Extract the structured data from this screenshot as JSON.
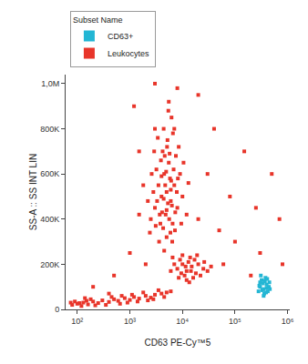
{
  "chart_data": {
    "type": "scatter",
    "x_label": "CD63 PE-Cy™5",
    "y_label": "SS-A :: SS INT LIN",
    "legend_title": "Subset Name",
    "legend": "top",
    "log": "x",
    "grid": false,
    "xlim": [
      60,
      1100000
    ],
    "xticks": [
      {
        "value": 100,
        "label": "10²"
      },
      {
        "value": 1000,
        "label": "10³"
      },
      {
        "value": 10000,
        "label": "10⁴"
      },
      {
        "value": 100000,
        "label": "10⁵"
      },
      {
        "value": 1000000,
        "label": "10⁶"
      }
    ],
    "ylim": [
      0,
      1040000
    ],
    "yticks": [
      0,
      {
        "value": 200000,
        "label": "200K"
      },
      {
        "value": 400000,
        "label": "400K"
      },
      {
        "value": 600000,
        "label": "600K"
      },
      {
        "value": 800000,
        "label": "800K"
      },
      {
        "value": 1000000,
        "label": "1,0M"
      }
    ],
    "series": [
      {
        "name": "Leukocytes",
        "color": "#e8352a",
        "marker": "square",
        "x": [
          3000,
          4000,
          5000,
          6000,
          4500,
          3500,
          5500,
          7000,
          2500,
          8000,
          4200,
          5200,
          3800,
          6500,
          4800,
          5800,
          3200,
          7500,
          2800,
          9000,
          4400,
          6200,
          5000,
          3600,
          7200,
          2200,
          10000,
          4700,
          5300,
          6800,
          3900,
          5100,
          4100,
          6000,
          5600,
          4300,
          3300,
          7800,
          8500,
          2600,
          12000,
          1800,
          6600,
          5400,
          4600,
          5900,
          3700,
          4900,
          6300,
          2900,
          9500,
          3400,
          7300,
          5700,
          4400,
          5000,
          6100,
          4000,
          3100,
          8200,
          5500,
          7000,
          2400,
          10500,
          4500,
          6400,
          3000,
          1500,
          13000,
          8000,
          10000,
          12000,
          15000,
          9000,
          11000,
          14000,
          18000,
          20000,
          7000,
          13000,
          16000,
          25000,
          10000,
          12000,
          9500,
          17000,
          22000,
          30000,
          6000,
          11500,
          14500,
          19000,
          8500,
          26000,
          35000,
          13500,
          6500,
          80,
          100,
          130,
          160,
          200,
          250,
          300,
          400,
          500,
          600,
          800,
          1000,
          1200,
          1500,
          2000,
          2500,
          3000,
          4000,
          5000,
          6000,
          90,
          120,
          180,
          350,
          700,
          900,
          1800,
          2200,
          3500,
          150,
          450,
          1100,
          2800,
          110,
          220,
          650,
          1400,
          4500,
          75,
          140,
          500,
          1000,
          1500,
          200,
          20000,
          30000,
          50000,
          80000,
          100000,
          150000,
          300000,
          500000,
          40000,
          700000,
          200000,
          60000,
          1200,
          20000,
          8000,
          2000,
          400,
          800000,
          250000,
          3000
        ],
        "values": [
          450000,
          500000,
          520000,
          480000,
          600000,
          550000,
          650000,
          550000,
          400000,
          450000,
          700000,
          750000,
          380000,
          380000,
          420000,
          580000,
          620000,
          680000,
          520000,
          600000,
          800000,
          850000,
          320000,
          300000,
          350000,
          480000,
          500000,
          550000,
          470000,
          620000,
          660000,
          720000,
          430000,
          530000,
          400000,
          360000,
          480000,
          520000,
          720000,
          600000,
          420000,
          550000,
          780000,
          880000,
          680000,
          340000,
          420000,
          610000,
          460000,
          700000,
          380000,
          760000,
          430000,
          690000,
          490000,
          440000,
          570000,
          590000,
          370000,
          580000,
          920000,
          800000,
          340000,
          650000,
          260000,
          300000,
          800000,
          420000,
          560000,
          180000,
          200000,
          170000,
          190000,
          220000,
          150000,
          230000,
          160000,
          200000,
          200000,
          210000,
          140000,
          180000,
          240000,
          130000,
          160000,
          220000,
          150000,
          170000,
          170000,
          190000,
          170000,
          240000,
          140000,
          210000,
          190000,
          120000,
          230000,
          20000,
          25000,
          30000,
          22000,
          35000,
          28000,
          40000,
          33000,
          45000,
          38000,
          50000,
          42000,
          55000,
          48000,
          60000,
          52000,
          65000,
          70000,
          75000,
          80000,
          35000,
          15000,
          45000,
          20000,
          60000,
          30000,
          75000,
          40000,
          85000,
          38000,
          55000,
          65000,
          45000,
          28000,
          18000,
          25000,
          35000,
          55000,
          30000,
          50000,
          150000,
          250000,
          700000,
          100000,
          400000,
          600000,
          350000,
          500000,
          300000,
          700000,
          250000,
          600000,
          800000,
          400000,
          150000,
          200000,
          900000,
          950000,
          980000,
          200000,
          70000,
          200000,
          450000,
          1000000
        ]
      },
      {
        "name": "CD63+",
        "color": "#23b6d4",
        "marker": "square",
        "x": [
          300000,
          350000,
          400000,
          320000,
          380000,
          420000,
          450000,
          280000,
          360000,
          340000,
          400000,
          310000,
          440000,
          370000,
          290000,
          330000,
          410000,
          460000,
          350000,
          390000,
          300000
        ],
        "values": [
          100000,
          90000,
          110000,
          130000,
          140000,
          80000,
          120000,
          80000,
          70000,
          115000,
          95000,
          150000,
          100000,
          125000,
          105000,
          85000,
          135000,
          90000,
          60000,
          75000,
          120000
        ]
      }
    ]
  }
}
